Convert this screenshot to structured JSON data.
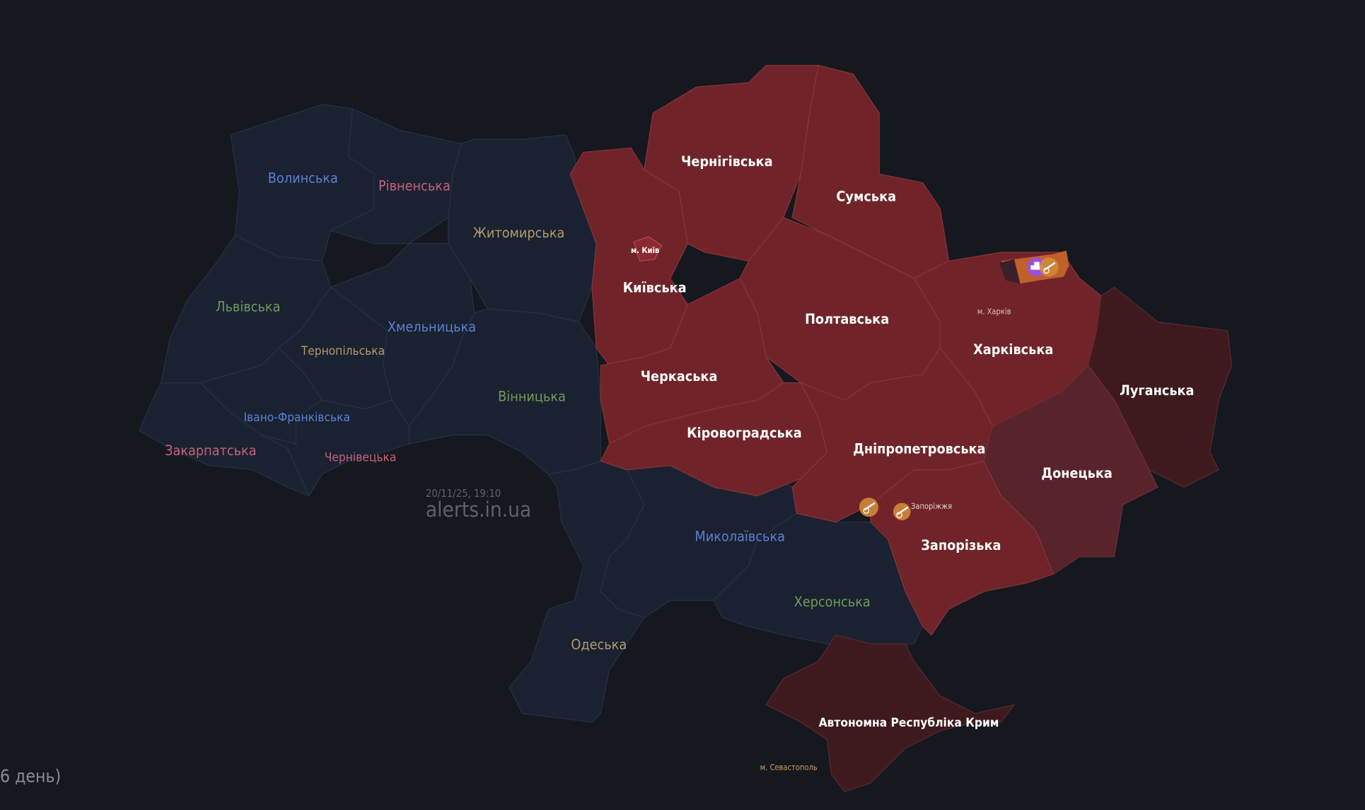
{
  "colors": {
    "background": "#15181e",
    "no_alert": "#1a2231",
    "alert": "#702429",
    "occupied": "#3e1a1e",
    "partial": "#58232a",
    "combat": "#c0602a",
    "tank": "#9b4fe0",
    "artillery": "#d08a3a"
  },
  "watermark": {
    "timestamp": "20/11/25, 19:10",
    "site": "alerts.in.ua"
  },
  "footer_text": "6 день)",
  "regions": {
    "volyn": {
      "label": "Волинська",
      "color": "#5b7fd6"
    },
    "rivne": {
      "label": "Рівненська",
      "color": "#c9607a"
    },
    "zhytomyr": {
      "label": "Житомирська",
      "color": "#b39a6a"
    },
    "lviv": {
      "label": "Львівська",
      "color": "#6f9a5c"
    },
    "khmelnytskyi": {
      "label": "Хмельницька",
      "color": "#5b7fd6"
    },
    "ternopil": {
      "label": "Тернопільська",
      "color": "#b39a6a"
    },
    "ivano_frankivsk": {
      "label": "Івано-Франківська",
      "color": "#5b7fd6"
    },
    "zakarpattia": {
      "label": "Закарпатська",
      "color": "#c9607a"
    },
    "chernivtsi": {
      "label": "Чернівецька",
      "color": "#c9607a"
    },
    "vinnytsia": {
      "label": "Вінницька",
      "color": "#6f9a5c"
    },
    "odesa": {
      "label": "Одеська",
      "color": "#b39a6a"
    },
    "mykolaiv": {
      "label": "Миколаївська",
      "color": "#5b7fd6"
    },
    "kherson": {
      "label": "Херсонська",
      "color": "#6f9a5c"
    },
    "kyiv": {
      "label": "Київська",
      "alert": true
    },
    "chernihiv": {
      "label": "Чернігівська",
      "alert": true
    },
    "sumy": {
      "label": "Сумська",
      "alert": true
    },
    "poltava": {
      "label": "Полтавська",
      "alert": true
    },
    "cherkasy": {
      "label": "Черкаська",
      "alert": true
    },
    "kirovohrad": {
      "label": "Кіровоградська",
      "alert": true
    },
    "dnipro": {
      "label": "Дніпропетровська",
      "alert": true
    },
    "kharkiv": {
      "label": "Харківська",
      "alert": true
    },
    "luhansk": {
      "label": "Луганська",
      "alert": true
    },
    "donetsk": {
      "label": "Донецька",
      "alert": true
    },
    "zaporizhzhia": {
      "label": "Запорізька",
      "alert": true
    },
    "crimea": {
      "label": "Автономна Республіка Крим",
      "alert": true
    }
  },
  "cities": {
    "kyiv": "м. Київ",
    "kharkiv": "м. Харків",
    "zaporizhzhia": "Запоріжжя",
    "sevastopol": "м. Севастополь"
  },
  "threat_icons": [
    "tank-icon",
    "artillery-icon",
    "artillery-icon",
    "artillery-icon"
  ]
}
